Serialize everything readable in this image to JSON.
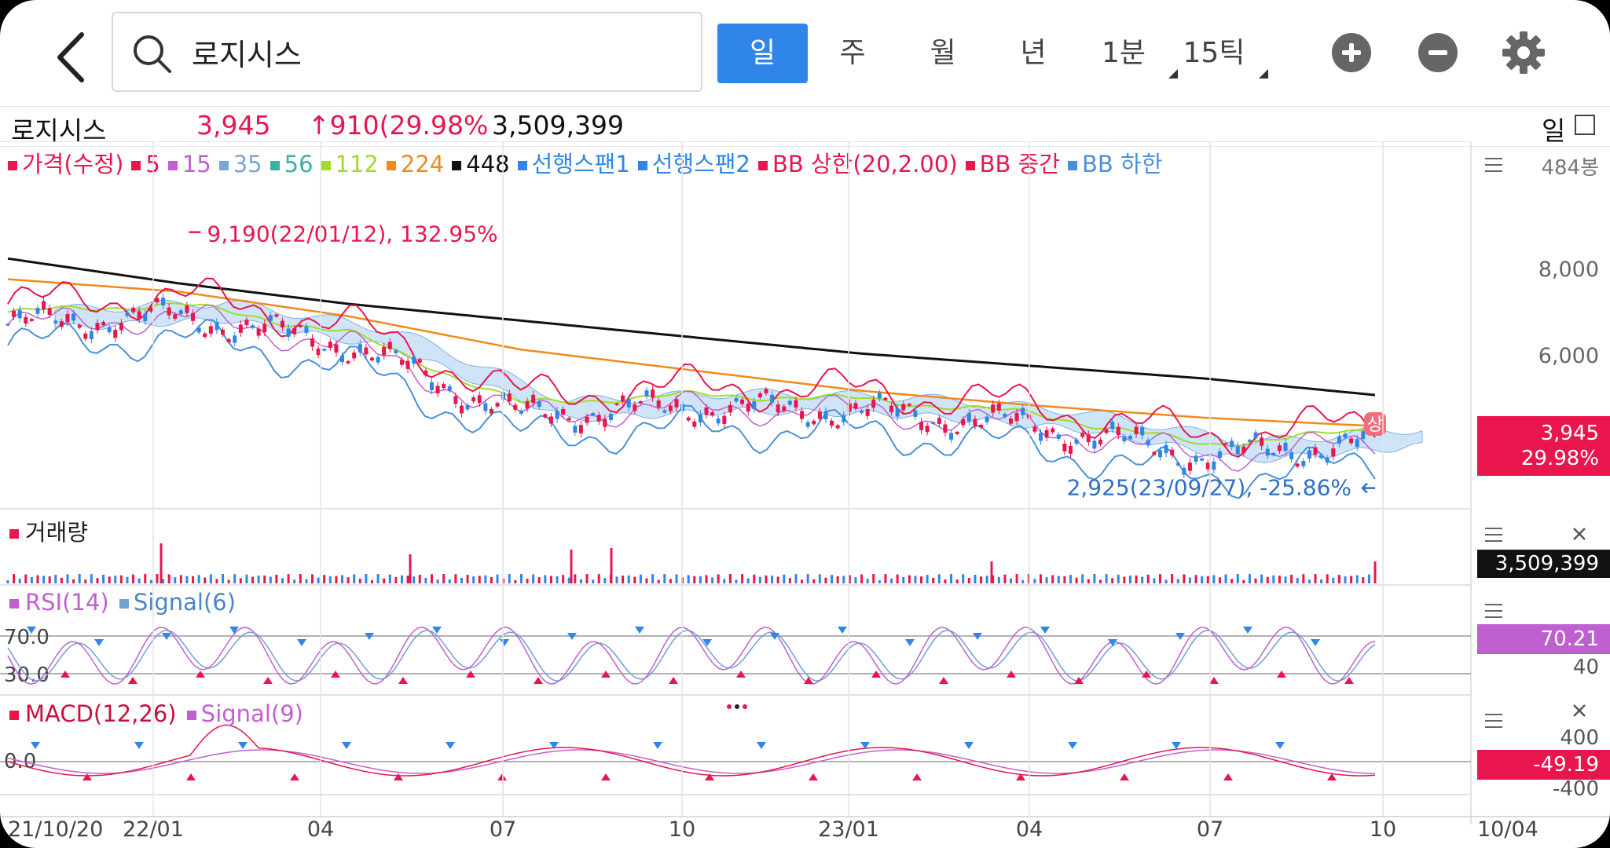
{
  "header": {
    "search_value": "로지시스",
    "periods": [
      "일",
      "주",
      "월",
      "년",
      "1분",
      "15틱"
    ]
  },
  "info": {
    "name": "로지시스",
    "price": "3,945",
    "change": "↑910(29.98%",
    "volume": "3,509,399",
    "period": "일"
  },
  "legend": [
    {
      "label": "가격(수정)",
      "color": "#e8164d"
    },
    {
      "label": "5",
      "color": "#e8164d"
    },
    {
      "label": "15",
      "color": "#c060d0"
    },
    {
      "label": "35",
      "color": "#7aa6d6"
    },
    {
      "label": "56",
      "color": "#3ab0a0"
    },
    {
      "label": "112",
      "color": "#9fdc2c"
    },
    {
      "label": "224",
      "color": "#f08a1c"
    },
    {
      "label": "448",
      "color": "#111111"
    },
    {
      "label": "선행스팬1",
      "color": "#2f86e8"
    },
    {
      "label": "선행스팬2",
      "color": "#2f86e8"
    },
    {
      "label": "BB 상한(20,2.00)",
      "color": "#e8164d"
    },
    {
      "label": "BB 중간",
      "color": "#e8164d"
    },
    {
      "label": "BB 하한",
      "color": "#4a90d9"
    }
  ],
  "price_axis": {
    "unit_label": "484봉",
    "ticks": [
      "8,000",
      "6,000"
    ]
  },
  "annotations": {
    "high": "9,190(22/01/12), 132.95%",
    "low": "2,925(23/09/27), -25.86%",
    "upper_limit_badge": "상"
  },
  "tags": {
    "price": "3,945",
    "price_pct": "29.98%",
    "volume": "3,509,399",
    "rsi": "70.21",
    "macd": "-49.19"
  },
  "volume_panel": {
    "label": "거래량"
  },
  "rsi_panel": {
    "label": "RSI(14)",
    "signal": "Signal(6)",
    "levels": [
      "70.0",
      "30.0"
    ],
    "axis": "40"
  },
  "macd_panel": {
    "label": "MACD(12,26)",
    "signal": "Signal(9)",
    "zero": "0.0",
    "axis": [
      "400",
      "-400"
    ]
  },
  "x_axis": {
    "labels": [
      "21/10/20",
      "22/01",
      "04",
      "07",
      "10",
      "23/01",
      "04",
      "07",
      "10",
      "10/04"
    ]
  },
  "chart_data": {
    "type": "line",
    "title": "",
    "x": [
      "21/10/20",
      "22/01",
      "04",
      "07",
      "10",
      "23/01",
      "04",
      "07",
      "10"
    ],
    "series": [
      {
        "name": "가격(수정)",
        "values": [
          6800,
          7000,
          6300,
          4600,
          4800,
          4700,
          4350,
          3600,
          3945
        ]
      },
      {
        "name": "448",
        "values": [
          8400,
          7800,
          7300,
          6900,
          6500,
          6100,
          5800,
          5500,
          5100
        ]
      },
      {
        "name": "224",
        "values": [
          7900,
          7600,
          7000,
          6200,
          5700,
          5200,
          4850,
          4550,
          4350
        ]
      }
    ],
    "ylim": [
      2500,
      10000
    ],
    "high": 9190,
    "low": 2925
  }
}
